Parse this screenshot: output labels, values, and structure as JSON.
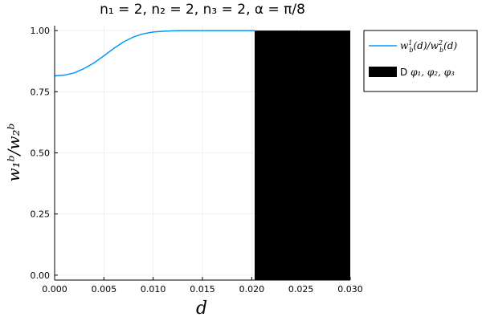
{
  "chart_data": {
    "type": "line",
    "title": "n₁ = 2, n₂ = 2, n₃ = 2, α = π/8",
    "xlabel": "d",
    "ylabel": "w₁ᵇ/w₂ᵇ",
    "xlim": [
      0.0,
      0.03
    ],
    "ylim": [
      -0.02,
      1.02
    ],
    "x_ticks": [
      "0.000",
      "0.005",
      "0.010",
      "0.015",
      "0.020",
      "0.025",
      "0.030"
    ],
    "x_tick_values": [
      0.0,
      0.005,
      0.01,
      0.015,
      0.02,
      0.025,
      0.03
    ],
    "y_ticks": [
      "0.00",
      "0.25",
      "0.50",
      "0.75",
      "1.00"
    ],
    "y_tick_values": [
      0.0,
      0.25,
      0.5,
      0.75,
      1.0
    ],
    "grid": true,
    "legend_placement": "outside top-right",
    "series": [
      {
        "name": "w_b^1(d)/w_b^2(d)",
        "color": "#009AFA",
        "x": [
          0.0,
          0.001,
          0.002,
          0.003,
          0.004,
          0.005,
          0.006,
          0.007,
          0.008,
          0.009,
          0.01,
          0.011,
          0.012,
          0.013,
          0.014,
          0.015,
          0.016,
          0.017,
          0.018,
          0.019,
          0.0203
        ],
        "y": [
          0.815,
          0.818,
          0.827,
          0.845,
          0.868,
          0.897,
          0.927,
          0.954,
          0.974,
          0.987,
          0.994,
          0.997,
          0.999,
          1.0,
          1.0,
          1.0,
          1.0,
          1.0,
          1.0,
          1.0,
          1.0
        ]
      }
    ],
    "region": {
      "name": "D φ₁, φ₂, φ₃",
      "color": "#000000",
      "x_start": 0.0203,
      "x_end": 0.03,
      "y_start": -0.02,
      "y_end": 1.0
    },
    "legend": {
      "line_label": {
        "base": "w",
        "sub": "b",
        "sup": "1",
        "arg": "(d)",
        "sep": "/",
        "base2": "w",
        "sub2": "b",
        "sup2": "2",
        "arg2": "(d)"
      },
      "region_label_prefix": "D ",
      "region_label_math": "φ₁, φ₂, φ₃"
    }
  }
}
